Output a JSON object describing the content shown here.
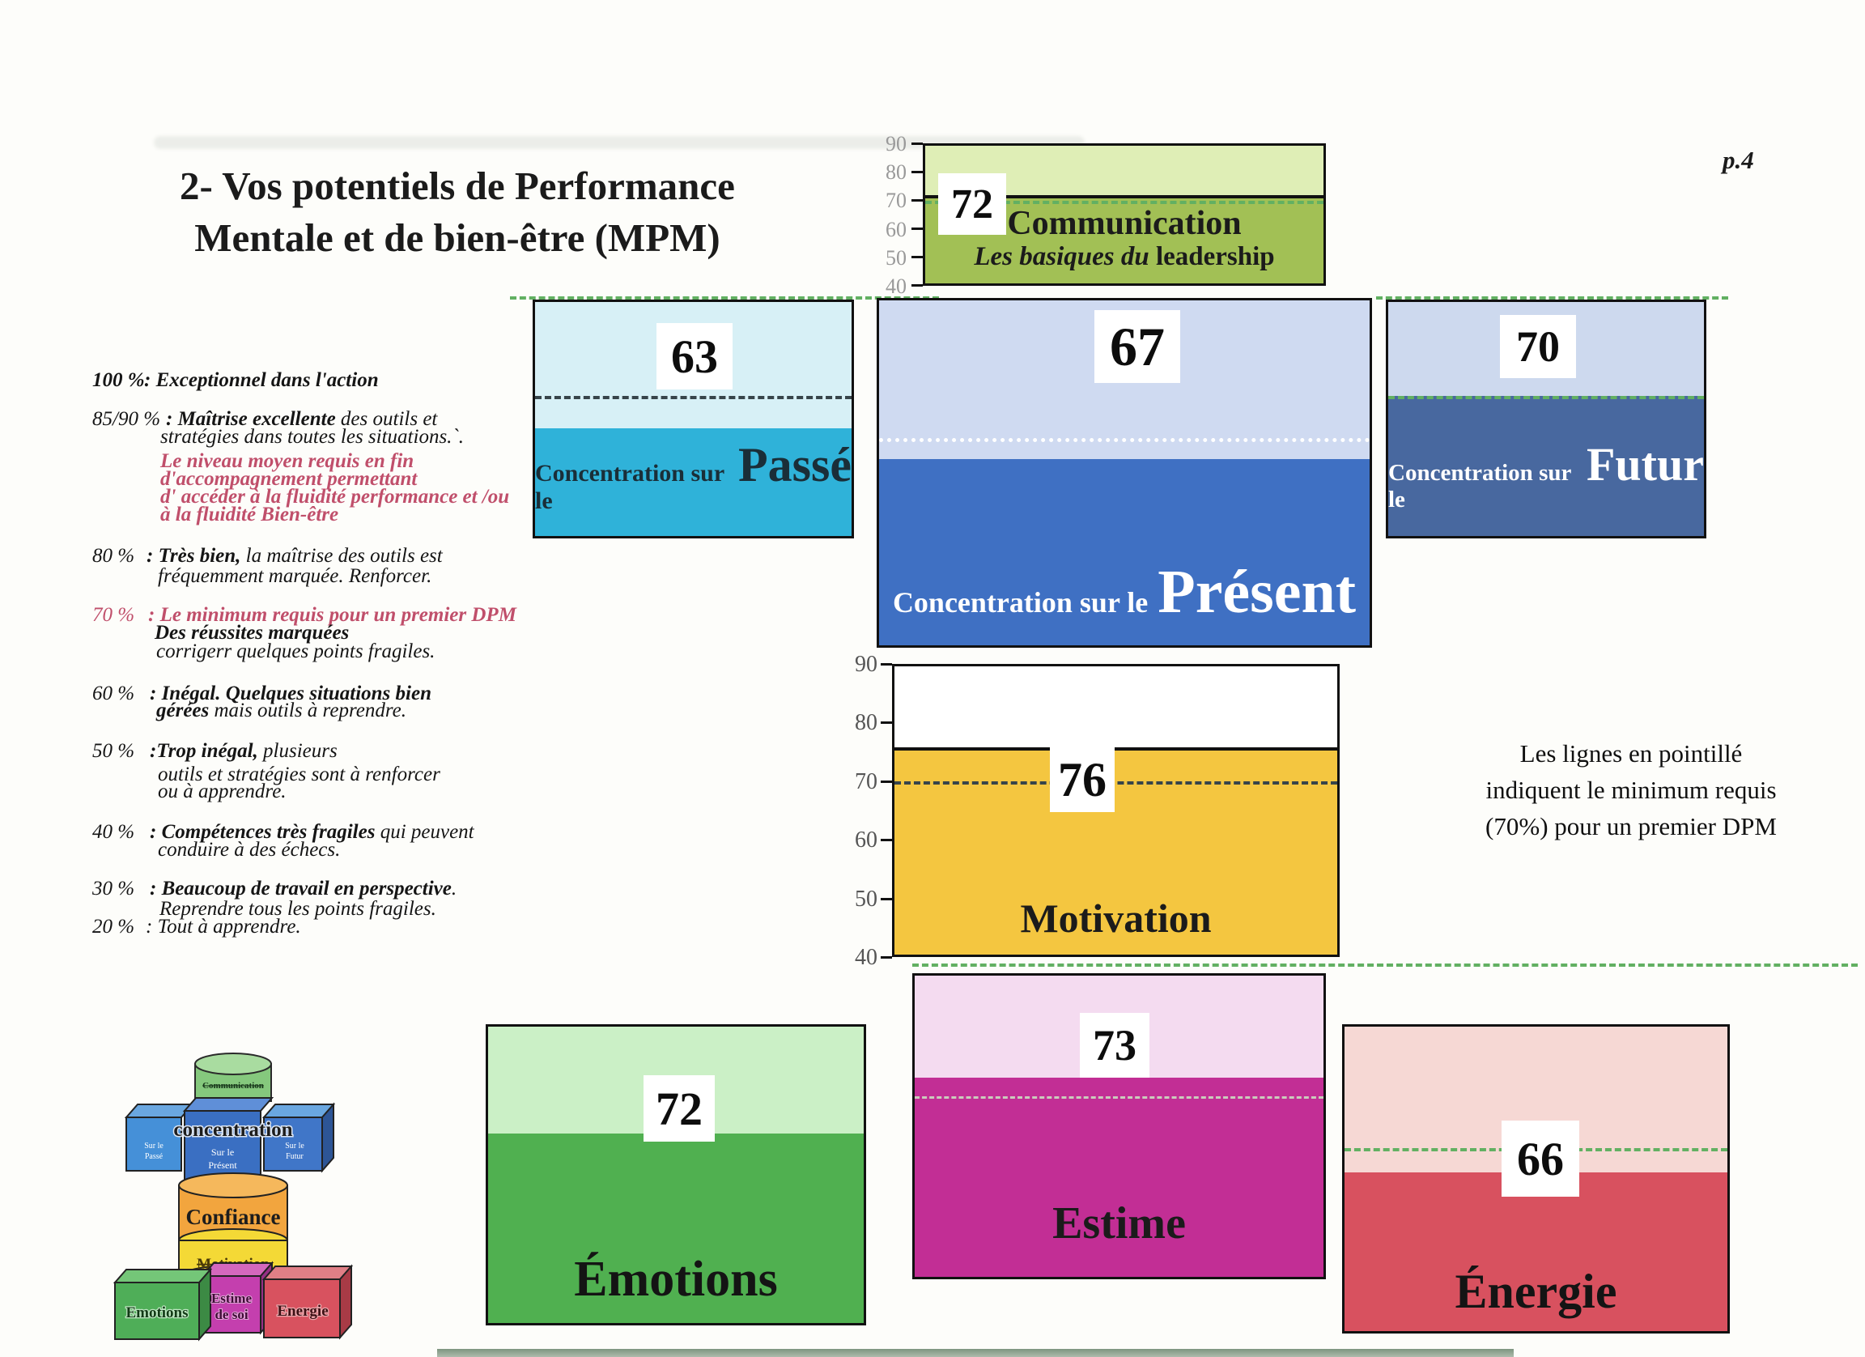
{
  "page": {
    "number": "p.4",
    "title_line1": "2- Vos potentiels de Performance",
    "title_line2": "Mentale et de bien-être (MPM)",
    "note_line1": "Les lignes en pointillé",
    "note_line2": "indiquent le minimum requis",
    "note_line3": "(70%) pour un premier DPM"
  },
  "legend": {
    "r100_pct": "100 %",
    "r100_text": ": Exceptionnel dans l'action",
    "r85_pct": "85/90 %",
    "r85_b": ": Maîtrise excellente",
    "r85_t": " des outils et",
    "r85_l2": "stratégies dans toutes les situations.`.",
    "r85_red1": "Le niveau moyen requis en fin",
    "r85_red2": "d'accompagnement permettant",
    "r85_red3": "d' accéder à la fluidité performance et /ou",
    "r85_red4": "à la fluidité Bien-être",
    "r80_pct": "80 %",
    "r80_b": ": Très bien,",
    "r80_t": " la maîtrise des outils est",
    "r80_l2": "fréquemment marquée. Renforcer.",
    "r70_pct": "70 %",
    "r70_red": ": Le minimum requis pour un premier DPM",
    "r70_b": "Des réussites marquées",
    "r70_l3": "corrigerr quelques points fragiles.",
    "r60_pct": "60 %",
    "r60_b": ": Inégal. Quelques situations bien",
    "r60_b2": "gérées",
    "r60_t2": " mais outils à reprendre.",
    "r50_pct": "50 %",
    "r50_b": ":Trop inégal,",
    "r50_t": " plusieurs",
    "r50_l2": "outils et stratégies sont à renforcer",
    "r50_l3": "ou à apprendre.",
    "r40_pct": "40 %",
    "r40_b": ": Compétences très fragiles",
    "r40_t": " qui peuvent",
    "r40_l2": "conduire à des échecs.",
    "r30_pct": "30 %",
    "r30_b": ": Beaucoup de travail en perspective",
    "r30_t": ".",
    "r30_l2": "Reprendre tous les points fragiles.",
    "r20_pct": "20 %",
    "r20_text": ": Tout à apprendre."
  },
  "chart_data": [
    {
      "type": "bar",
      "name": "communication",
      "title": "Communication",
      "subtitle_italic": "Les basiques du",
      "subtitle_bold": "leadership",
      "value": 72,
      "ymin": 40,
      "ymax": 90,
      "threshold": 70,
      "yticks": [
        "90",
        "80",
        "70",
        "60",
        "50",
        "40"
      ],
      "light_color": "#dfeeb6",
      "fill_color": "#a2c055"
    },
    {
      "type": "bar",
      "name": "concentration-passe",
      "label_prefix": "Concentration sur le",
      "label_main": "Passé",
      "value": 63,
      "ymin": 40,
      "ymax": 90,
      "threshold": 70,
      "light_color": "#d7f0f6",
      "fill_color": "#2fb2d9"
    },
    {
      "type": "bar",
      "name": "concentration-present",
      "label_prefix": "Concentration sur le",
      "label_main": "Présent",
      "value": 67,
      "ymin": 40,
      "ymax": 90,
      "threshold": 70,
      "light_color": "#cfdaf1",
      "fill_color": "#3f70c3"
    },
    {
      "type": "bar",
      "name": "concentration-futur",
      "label_prefix": "Concentration sur le",
      "label_main": "Futur",
      "value": 70,
      "ymin": 40,
      "ymax": 90,
      "threshold": 70,
      "light_color": "#cdd9ee",
      "fill_color": "#48689f"
    },
    {
      "type": "bar",
      "name": "motivation",
      "title": "Motivation",
      "value": 76,
      "ymin": 40,
      "ymax": 90,
      "threshold": 70,
      "yticks": [
        "90",
        "80",
        "70",
        "60",
        "50",
        "40"
      ],
      "light_color": "#ffffff",
      "fill_color": "#f4c640"
    },
    {
      "type": "bar",
      "name": "estime",
      "title": "Estime",
      "value": 73,
      "ymin": 40,
      "ymax": 90,
      "threshold": 70,
      "light_color": "#f4dbf0",
      "fill_color": "#c22e95"
    },
    {
      "type": "bar",
      "name": "emotions",
      "title": "Émotions",
      "value": 72,
      "ymin": 40,
      "ymax": 90,
      "threshold": 70,
      "light_color": "#cbf0c6",
      "fill_color": "#50b050"
    },
    {
      "type": "bar",
      "name": "energie",
      "title": "Énergie",
      "value": 66,
      "ymin": 40,
      "ymax": 90,
      "threshold": 70,
      "light_color": "#f6d8d4",
      "fill_color": "#d8515f"
    }
  ],
  "pyramid": {
    "top_label": "Communication",
    "band": "concentration",
    "cube_left_l1": "Sur le",
    "cube_left_l2": "Passé",
    "cube_center_l1": "Sur le",
    "cube_center_l2": "Présent",
    "cube_right_l1": "Sur le",
    "cube_right_l2": "Futur",
    "mid_cylinder": "Confiance",
    "mid_band": "Motivation",
    "bottom_left": "Emotions",
    "bottom_center_l1": "Estime",
    "bottom_center_l2": "de soi",
    "bottom_right": "Energie"
  },
  "colors": {
    "threshold_green": "#62b062",
    "legend_red": "#c04f6b",
    "axis_gray": "#999999"
  }
}
